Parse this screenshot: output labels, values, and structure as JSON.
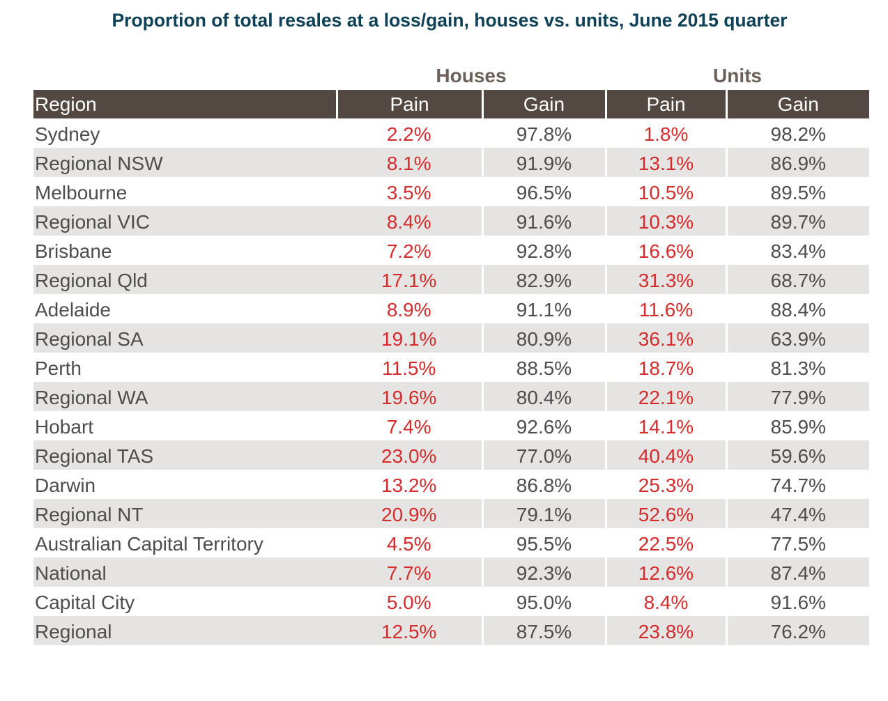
{
  "chart_data": {
    "type": "table",
    "title": "Proportion of total resales at a loss/gain, houses vs. units, June 2015 quarter",
    "groups": [
      "Houses",
      "Units"
    ],
    "columns": [
      "Region",
      "Pain",
      "Gain",
      "Pain",
      "Gain"
    ],
    "rows": [
      {
        "region": "Sydney",
        "houses_pain": "2.2%",
        "houses_gain": "97.8%",
        "units_pain": "1.8%",
        "units_gain": "98.2%"
      },
      {
        "region": "Regional NSW",
        "houses_pain": "8.1%",
        "houses_gain": "91.9%",
        "units_pain": "13.1%",
        "units_gain": "86.9%"
      },
      {
        "region": "Melbourne",
        "houses_pain": "3.5%",
        "houses_gain": "96.5%",
        "units_pain": "10.5%",
        "units_gain": "89.5%"
      },
      {
        "region": "Regional VIC",
        "houses_pain": "8.4%",
        "houses_gain": "91.6%",
        "units_pain": "10.3%",
        "units_gain": "89.7%"
      },
      {
        "region": "Brisbane",
        "houses_pain": "7.2%",
        "houses_gain": "92.8%",
        "units_pain": "16.6%",
        "units_gain": "83.4%"
      },
      {
        "region": "Regional Qld",
        "houses_pain": "17.1%",
        "houses_gain": "82.9%",
        "units_pain": "31.3%",
        "units_gain": "68.7%"
      },
      {
        "region": "Adelaide",
        "houses_pain": "8.9%",
        "houses_gain": "91.1%",
        "units_pain": "11.6%",
        "units_gain": "88.4%"
      },
      {
        "region": "Regional SA",
        "houses_pain": "19.1%",
        "houses_gain": "80.9%",
        "units_pain": "36.1%",
        "units_gain": "63.9%"
      },
      {
        "region": "Perth",
        "houses_pain": "11.5%",
        "houses_gain": "88.5%",
        "units_pain": "18.7%",
        "units_gain": "81.3%"
      },
      {
        "region": "Regional WA",
        "houses_pain": "19.6%",
        "houses_gain": "80.4%",
        "units_pain": "22.1%",
        "units_gain": "77.9%"
      },
      {
        "region": "Hobart",
        "houses_pain": "7.4%",
        "houses_gain": "92.6%",
        "units_pain": "14.1%",
        "units_gain": "85.9%"
      },
      {
        "region": "Regional TAS",
        "houses_pain": "23.0%",
        "houses_gain": "77.0%",
        "units_pain": "40.4%",
        "units_gain": "59.6%"
      },
      {
        "region": "Darwin",
        "houses_pain": "13.2%",
        "houses_gain": "86.8%",
        "units_pain": "25.3%",
        "units_gain": "74.7%"
      },
      {
        "region": "Regional NT",
        "houses_pain": "20.9%",
        "houses_gain": "79.1%",
        "units_pain": "52.6%",
        "units_gain": "47.4%"
      },
      {
        "region": "Australian Capital Territory",
        "houses_pain": "4.5%",
        "houses_gain": "95.5%",
        "units_pain": "22.5%",
        "units_gain": "77.5%"
      },
      {
        "region": "National",
        "houses_pain": "7.7%",
        "houses_gain": "92.3%",
        "units_pain": "12.6%",
        "units_gain": "87.4%"
      },
      {
        "region": "Capital City",
        "houses_pain": "5.0%",
        "houses_gain": "95.0%",
        "units_pain": "8.4%",
        "units_gain": "91.6%"
      },
      {
        "region": "Regional",
        "houses_pain": "12.5%",
        "houses_gain": "87.5%",
        "units_pain": "23.8%",
        "units_gain": "76.2%"
      }
    ]
  },
  "colors": {
    "title": "#0e4155",
    "group_header": "#6b605a",
    "header_bg": "#534842",
    "header_text": "#ffffff",
    "pain_text": "#d42b2b",
    "body_text": "#4d4d4d",
    "stripe_bg": "#e6e4e2"
  }
}
